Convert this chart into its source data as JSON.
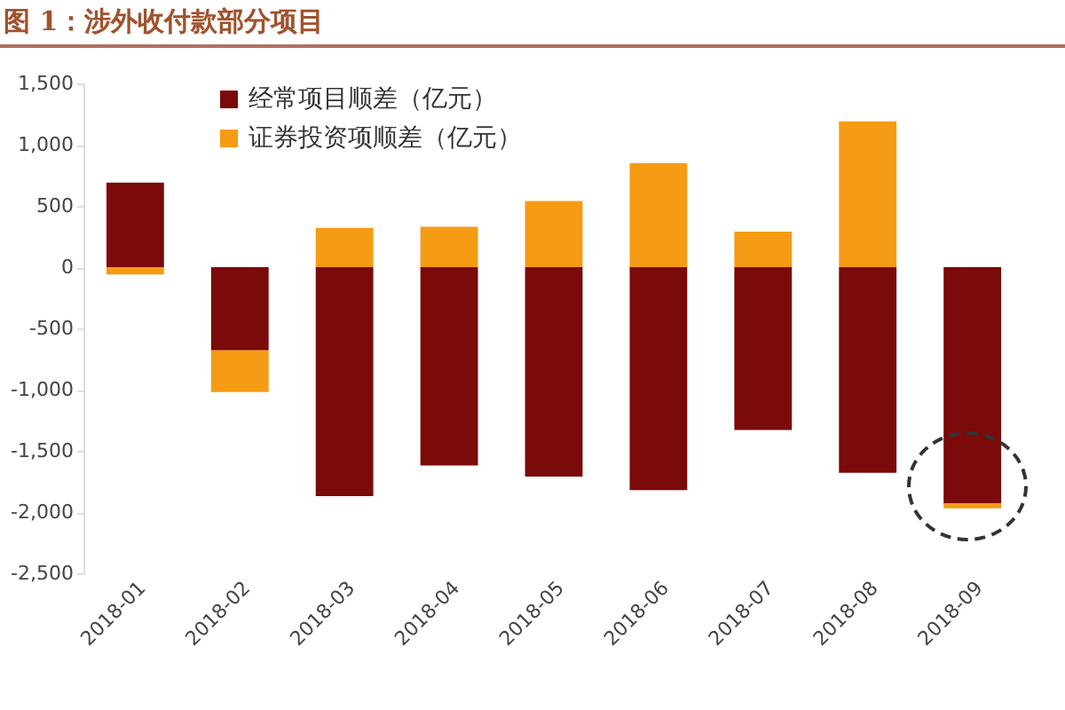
{
  "chart_data": {
    "type": "bar",
    "title": "图 1：涉外收付款部分项目",
    "stacked": true,
    "categories": [
      "2018-01",
      "2018-02",
      "2018-03",
      "2018-04",
      "2018-05",
      "2018-06",
      "2018-07",
      "2018-08",
      "2018-09"
    ],
    "series": [
      {
        "name": "经常项目顺差（亿元）",
        "color": "#7b0a0a",
        "values": [
          690,
          -680,
          -1870,
          -1620,
          -1710,
          -1820,
          -1330,
          -1680,
          -1930
        ]
      },
      {
        "name": "证券投资项顺差（亿元）",
        "color": "#f59b14",
        "values": [
          -60,
          -340,
          320,
          330,
          540,
          850,
          290,
          1190,
          -40
        ]
      }
    ],
    "ylim": [
      -2500,
      1500
    ],
    "yticks": [
      {
        "value": -2500,
        "label": "-2,500"
      },
      {
        "value": -2000,
        "label": "-2,000"
      },
      {
        "value": -1500,
        "label": "-1,500"
      },
      {
        "value": -1000,
        "label": "-1,000"
      },
      {
        "value": -500,
        "label": "-500"
      },
      {
        "value": 0,
        "label": "0"
      },
      {
        "value": 500,
        "label": "500"
      },
      {
        "value": 1000,
        "label": "1,000"
      },
      {
        "value": 1500,
        "label": "1,500"
      }
    ],
    "grid": false,
    "legend": "top left"
  }
}
